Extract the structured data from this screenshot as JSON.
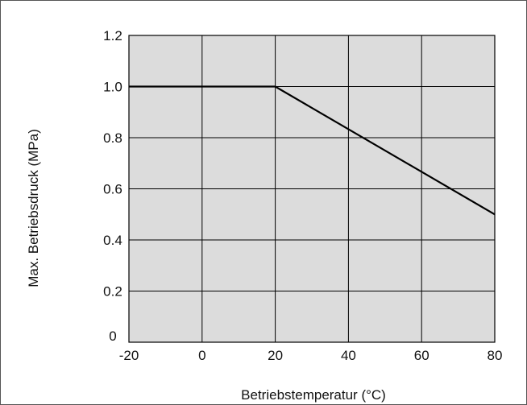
{
  "chart_data": {
    "type": "line",
    "title": "",
    "xlabel": "Betriebstemperatur  (°C)",
    "ylabel": "Max. Betriebsdruck  (MPa)",
    "xlim": [
      -20,
      80
    ],
    "ylim": [
      0,
      1.2
    ],
    "x_ticks": [
      "-20",
      "0",
      "20",
      "40",
      "60",
      "80"
    ],
    "y_ticks": [
      "0",
      "0.2",
      "0.4",
      "0.6",
      "0.8",
      "1.0",
      "1.2"
    ],
    "grid": true,
    "plot_background": "#dcdcdc",
    "line_color": "#000000",
    "series": [
      {
        "x": [
          -20,
          20,
          80
        ],
        "y": [
          1.0,
          1.0,
          0.5
        ]
      }
    ]
  }
}
